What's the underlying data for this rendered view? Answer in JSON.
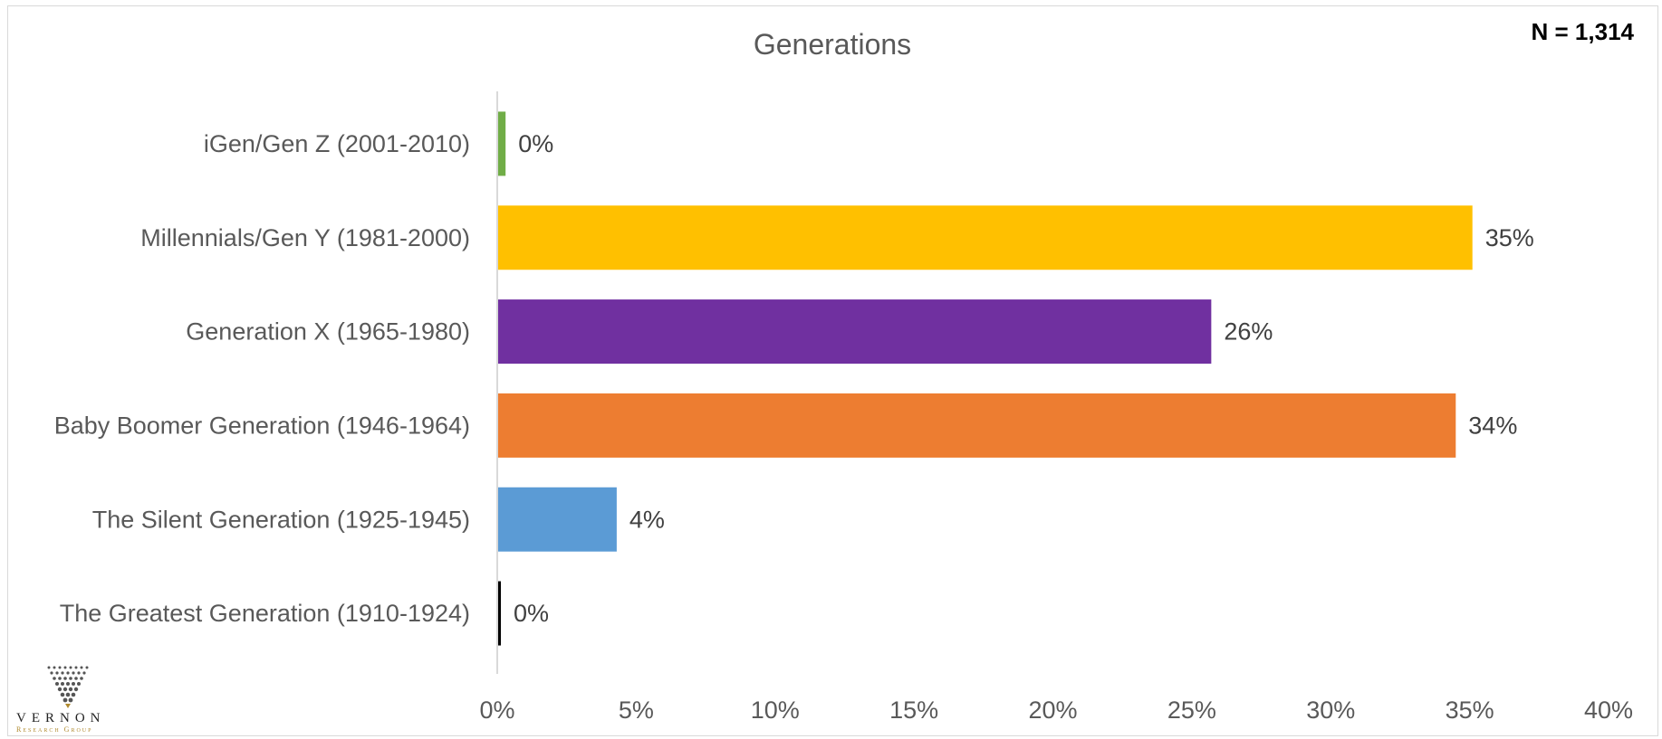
{
  "n_label": "N = 1,314",
  "logo": {
    "name": "VERNON",
    "subtitle": "Research Group"
  },
  "colors": {
    "axis": "#d9d9d9",
    "logo_accent": "#b08a2e"
  },
  "chart_data": {
    "type": "bar",
    "orientation": "horizontal",
    "title": "Generations",
    "xlabel": "",
    "ylabel": "",
    "xlim": [
      0,
      40
    ],
    "ticks": [
      "0%",
      "5%",
      "10%",
      "15%",
      "20%",
      "25%",
      "30%",
      "35%",
      "40%"
    ],
    "tick_values": [
      0,
      5,
      10,
      15,
      20,
      25,
      30,
      35,
      40
    ],
    "grid": false,
    "legend": "none",
    "categories": [
      "iGen/Gen Z (2001-2010)",
      "Millennials/Gen Y (1981-2000)",
      "Generation X (1965-1980)",
      "Baby Boomer Generation (1946-1964)",
      "The Silent Generation (1925-1945)",
      "The Greatest Generation (1910-1924)"
    ],
    "values": [
      0.3,
      35.1,
      25.7,
      34.5,
      4.3,
      0.1
    ],
    "data_labels": [
      "0%",
      "35%",
      "26%",
      "34%",
      "4%",
      "0%"
    ],
    "bar_colors": [
      "#70AD47",
      "#FFC000",
      "#7030A0",
      "#ED7D31",
      "#5B9BD5",
      "#000000"
    ]
  }
}
